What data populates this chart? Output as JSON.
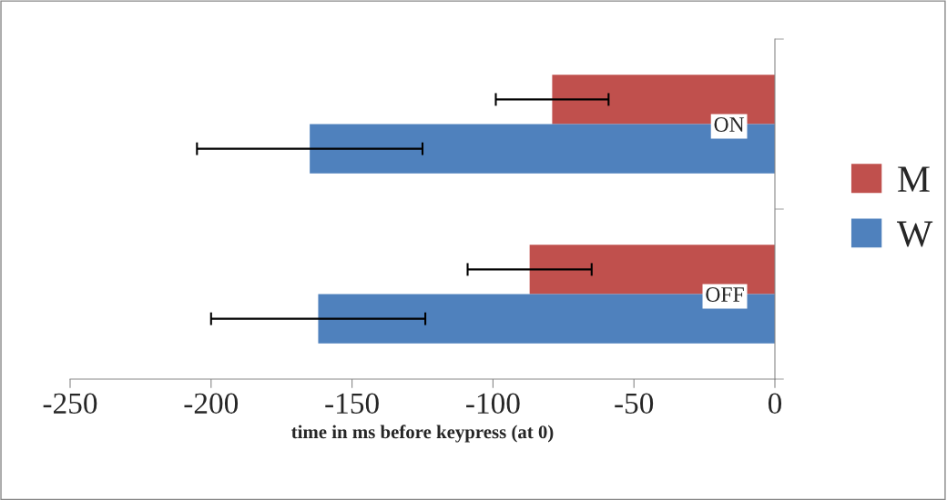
{
  "chart_data": {
    "type": "bar",
    "orientation": "horizontal",
    "xlabel": "time in ms before keypress (at 0)",
    "categories": [
      "ON",
      "OFF"
    ],
    "series": [
      {
        "name": "M",
        "color": "#c0504d",
        "values": [
          -79,
          -87
        ],
        "errors": [
          20,
          22
        ]
      },
      {
        "name": "W",
        "color": "#4f81bd",
        "values": [
          -165,
          -162
        ],
        "errors": [
          40,
          38
        ]
      }
    ],
    "xlim": [
      -250,
      0
    ],
    "xticks": [
      -250,
      -200,
      -150,
      -100,
      -50,
      0
    ],
    "grid": false,
    "legend": "right"
  }
}
